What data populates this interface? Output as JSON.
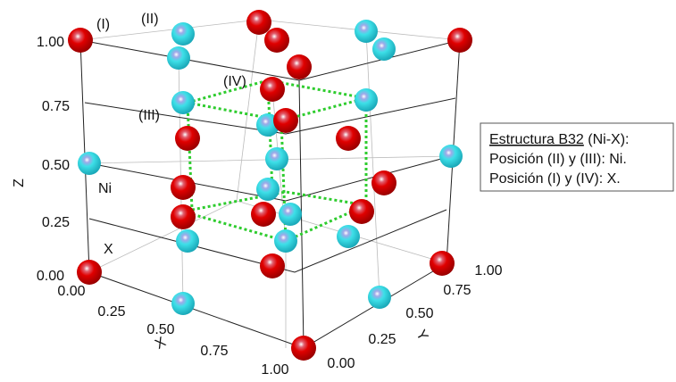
{
  "axes": {
    "z": {
      "label": "Z",
      "ticks": [
        "1.00",
        "0.75",
        "0.50",
        "0.25",
        "0.00"
      ]
    },
    "x": {
      "label": "X",
      "ticks": [
        "0.00",
        "0.25",
        "0.50",
        "0.75",
        "1.00"
      ]
    },
    "y": {
      "label": "Y",
      "ticks": [
        "0.00",
        "0.25",
        "0.50",
        "0.75",
        "1.00"
      ]
    }
  },
  "labels": {
    "I": "(I)",
    "II": "(II)",
    "III": "(III)",
    "IV": "(IV)",
    "ni": "Ni",
    "x": "X"
  },
  "legend": {
    "title": "Estructura B32",
    "title_suffix": "(Ni-X):",
    "lines": [
      "Posición (II) y (III): Ni.",
      "Posición (I) y (IV): X."
    ]
  }
}
